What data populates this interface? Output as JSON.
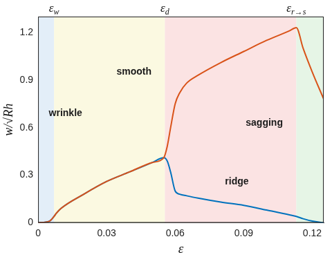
{
  "chart_data": {
    "type": "line",
    "x_label": "ε",
    "y_label": "w/√Rh",
    "x": [
      0,
      0.005,
      0.007,
      0.008,
      0.01,
      0.02,
      0.03,
      0.04,
      0.05,
      0.055,
      0.0565,
      0.058,
      0.06,
      0.062,
      0.065,
      0.07,
      0.08,
      0.09,
      0.1,
      0.11,
      0.113,
      0.116,
      0.12,
      0.125
    ],
    "series": [
      {
        "color": "#d95319",
        "values": [
          0,
          0.01,
          0.04,
          0.06,
          0.09,
          0.18,
          0.26,
          0.32,
          0.38,
          0.41,
          0.48,
          0.6,
          0.75,
          0.82,
          0.88,
          0.93,
          1.01,
          1.08,
          1.15,
          1.21,
          1.23,
          1.1,
          0.95,
          0.78
        ]
      },
      {
        "color": "#0072bd",
        "values": [
          0,
          0.01,
          0.04,
          0.06,
          0.09,
          0.18,
          0.26,
          0.32,
          0.38,
          0.41,
          0.39,
          0.32,
          0.2,
          0.18,
          0.17,
          0.155,
          0.13,
          0.11,
          0.08,
          0.05,
          0.04,
          0.025,
          0.01,
          0
        ]
      }
    ],
    "xlim": [
      0,
      0.125
    ],
    "ylim": [
      0,
      1.3
    ],
    "xticks": [
      0,
      0.03,
      0.06,
      0.09,
      0.12
    ],
    "yticks": [
      0,
      0.3,
      0.6,
      0.9,
      1.2
    ],
    "grid": false,
    "regions": [
      {
        "from": 0,
        "to": 0.007,
        "color": "#e3eef8"
      },
      {
        "from": 0.007,
        "to": 0.0555,
        "color": "#fbf9e1"
      },
      {
        "from": 0.0555,
        "to": 0.113,
        "color": "#fbe3e3"
      },
      {
        "from": 0.113,
        "to": 0.125,
        "color": "#e6f5e6"
      }
    ],
    "markers": [
      {
        "x": 0.007,
        "text": "ε",
        "sub": "w"
      },
      {
        "x": 0.0555,
        "text": "ε",
        "sub": "d"
      },
      {
        "x": 0.113,
        "text": "ε",
        "sub": "r→s"
      }
    ],
    "annotations": [
      {
        "text": "smooth",
        "x": 0.042,
        "y": 0.95
      },
      {
        "text": "wrinkle",
        "x": 0.012,
        "y": 0.69
      },
      {
        "text": "ridge",
        "x": 0.087,
        "y": 0.26
      },
      {
        "text": "sagging",
        "x": 0.099,
        "y": 0.63
      }
    ]
  }
}
